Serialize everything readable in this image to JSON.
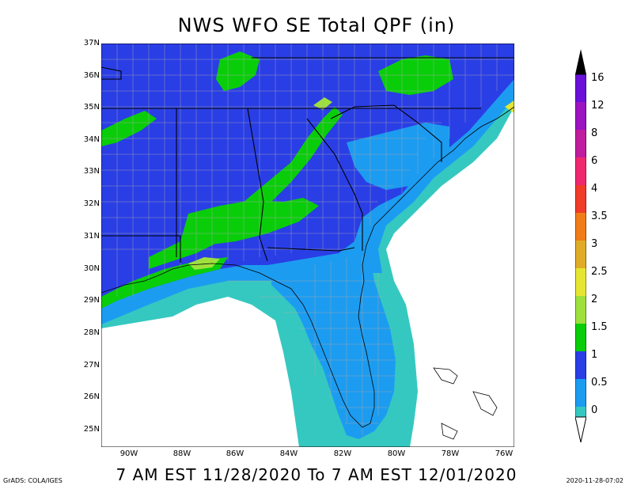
{
  "title": "NWS WFO SE Total QPF (in)",
  "subtitle": "7 AM EST 11/28/2020 To 7 AM EST 12/01/2020",
  "credit": "GrADS: COLA/IGES",
  "timestamp": "2020-11-28-07:02",
  "map": {
    "lat_labels": [
      "37N",
      "36N",
      "35N",
      "34N",
      "33N",
      "32N",
      "31N",
      "30N",
      "29N",
      "28N",
      "27N",
      "26N",
      "25N"
    ],
    "lon_labels": [
      "90W",
      "88W",
      "86W",
      "84W",
      "82W",
      "80W",
      "78W",
      "76W"
    ]
  },
  "colorbar": {
    "labels": [
      "16",
      "12",
      "8",
      "6",
      "4",
      "3.5",
      "3",
      "2.5",
      "2",
      "1.5",
      "1",
      "0.5",
      "0"
    ],
    "colors": {
      "0": "#35c8c0",
      "0.5": "#1c9cf0",
      "1": "#2a3ee6",
      "1.5": "#0acd0a",
      "2": "#9ee03c",
      "2.5": "#e6e632",
      "3": "#e0ac28",
      "3.5": "#f07d19",
      "4": "#f03c28",
      "6": "#f0286e",
      "8": "#c01c9e",
      "12": "#9a14c0",
      "16": "#6a10d8"
    }
  }
}
